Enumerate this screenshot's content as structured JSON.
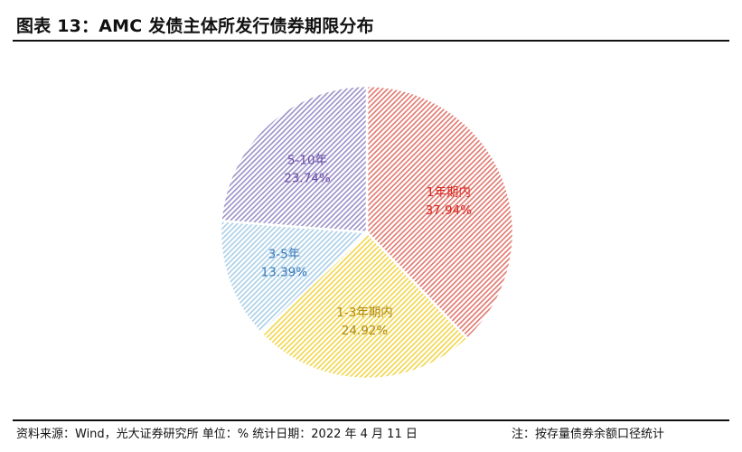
{
  "header": {
    "title": "图表 13：AMC 发债主体所发行债券期限分布"
  },
  "footer": {
    "source": "资料来源：Wind，光大证券研究所   单位：%   统计日期：2022 年 4 月 11 日",
    "note": "注：按存量债券余额口径统计"
  },
  "chart_data": {
    "type": "pie",
    "title": "",
    "slices": [
      {
        "label": "1年期内",
        "value": 37.94,
        "value_text": "37.94%",
        "color": "#e0766d",
        "text_color": "#d6261d"
      },
      {
        "label": "1-3年期内",
        "value": 24.92,
        "value_text": "24.92%",
        "color": "#f2d547",
        "text_color": "#b08a10"
      },
      {
        "label": "3-5年",
        "value": 13.39,
        "value_text": "13.39%",
        "color": "#a9cfe8",
        "text_color": "#3a78b8"
      },
      {
        "label": "5-10年",
        "value": 23.74,
        "value_text": "23.74%",
        "color": "#9a90c8",
        "text_color": "#6a4ea8"
      }
    ],
    "start_angle": "12 o'clock",
    "direction": "clockwise",
    "fill": "diagonal-hatch"
  }
}
